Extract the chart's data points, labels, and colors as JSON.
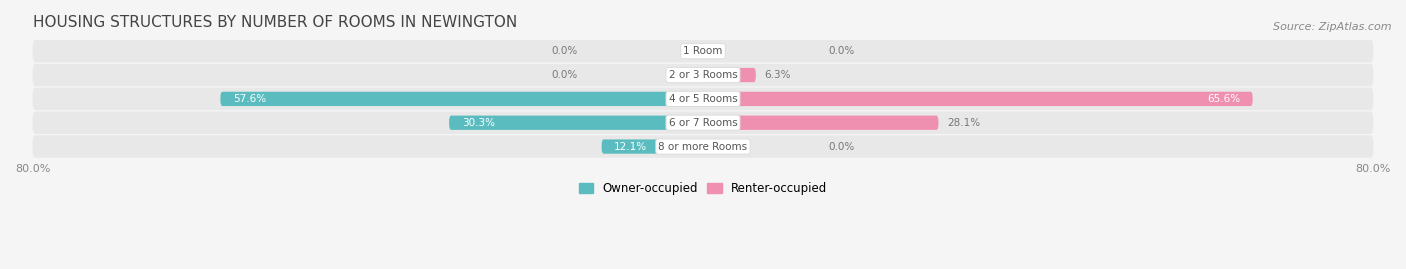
{
  "title": "HOUSING STRUCTURES BY NUMBER OF ROOMS IN NEWINGTON",
  "source": "Source: ZipAtlas.com",
  "categories": [
    "1 Room",
    "2 or 3 Rooms",
    "4 or 5 Rooms",
    "6 or 7 Rooms",
    "8 or more Rooms"
  ],
  "owner_values": [
    0.0,
    0.0,
    57.6,
    30.3,
    12.1
  ],
  "renter_values": [
    0.0,
    6.3,
    65.6,
    28.1,
    0.0
  ],
  "owner_color": "#5bbcbf",
  "renter_color": "#f090b0",
  "row_bg_color": "#e8e8e8",
  "fig_bg_color": "#f5f5f5",
  "xlim": [
    -80,
    80
  ],
  "title_fontsize": 11,
  "source_fontsize": 8,
  "bar_height": 0.6,
  "figsize": [
    14.06,
    2.69
  ],
  "dpi": 100
}
